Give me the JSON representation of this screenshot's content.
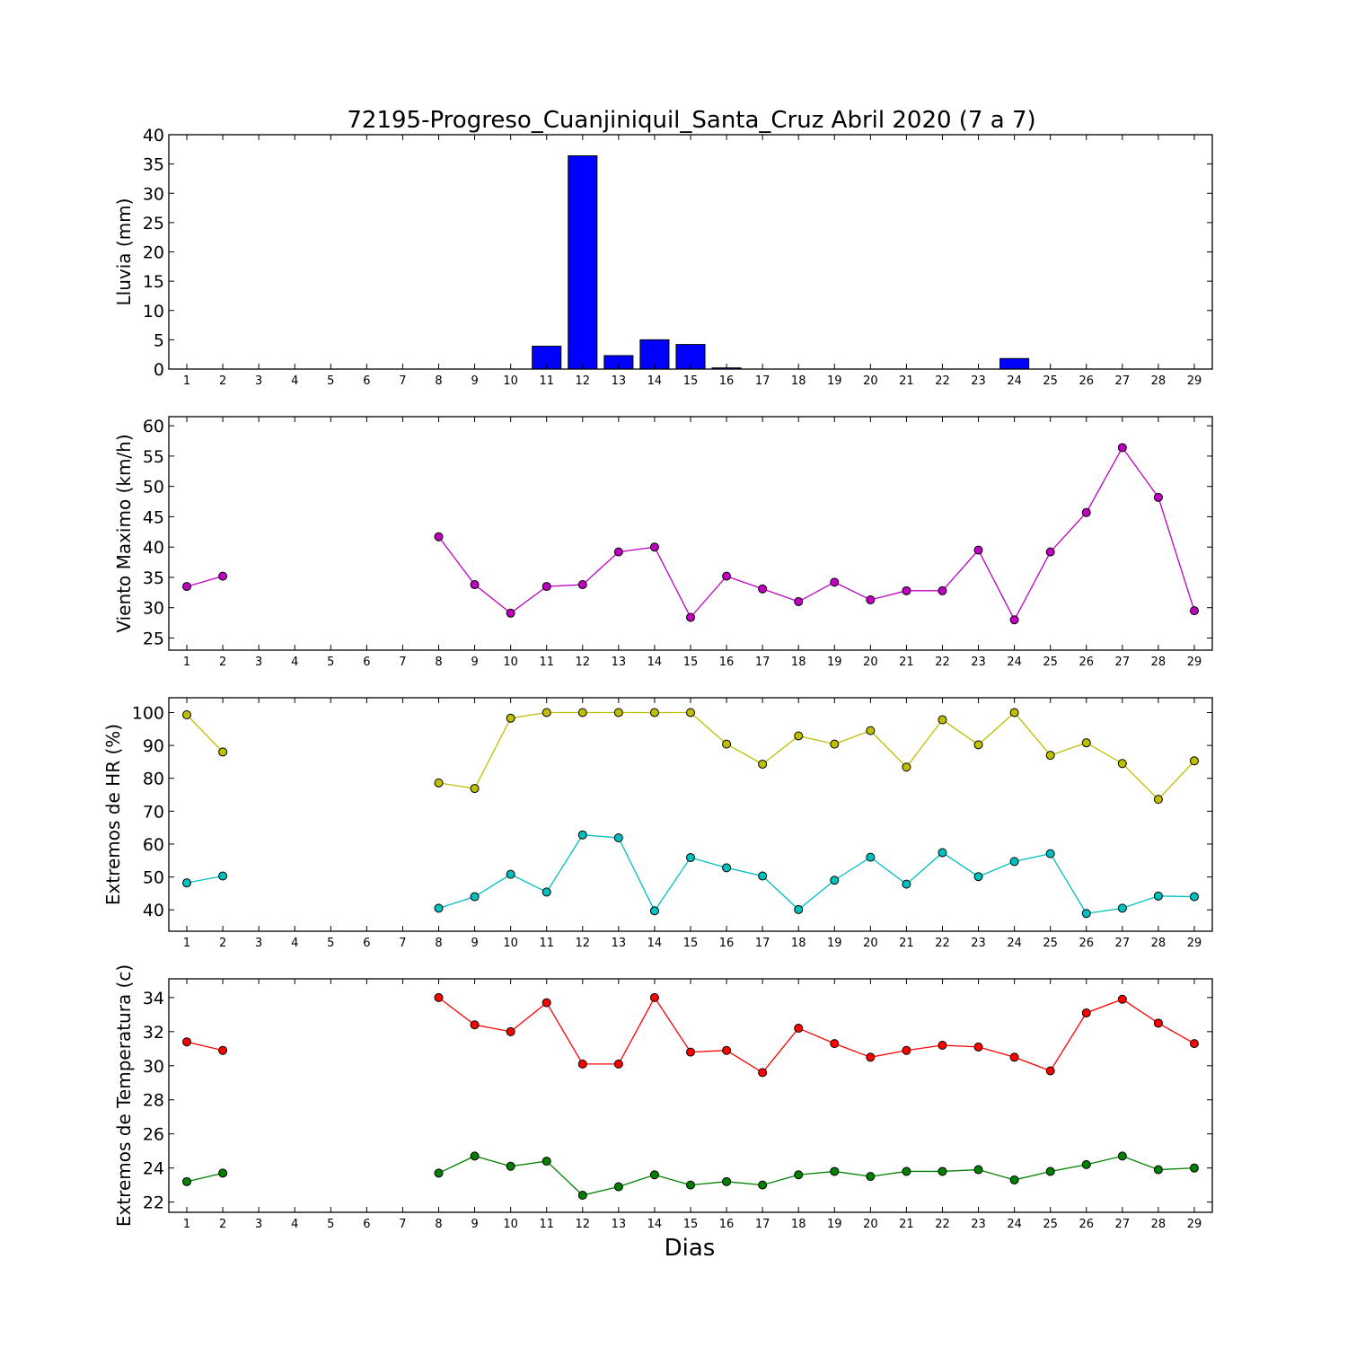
{
  "title": "72195-Progreso_Cuanjiniquil_Santa_Cruz Abril 2020  (7 a 7)",
  "xlabel": "Dias",
  "chart_data": [
    {
      "type": "bar",
      "ylabel": "Lluvia (mm)",
      "ylim": [
        0,
        40
      ],
      "yticks": [
        0,
        5,
        10,
        15,
        20,
        25,
        30,
        35,
        40
      ],
      "x": [
        1,
        2,
        3,
        4,
        5,
        6,
        7,
        8,
        9,
        10,
        11,
        12,
        13,
        14,
        15,
        16,
        17,
        18,
        19,
        20,
        21,
        22,
        23,
        24,
        25,
        26,
        27,
        28,
        29
      ],
      "color": "#0000ff",
      "values": [
        0,
        0,
        0,
        0,
        0,
        0,
        0,
        0,
        0,
        0,
        3.9,
        36.4,
        2.3,
        5.0,
        4.2,
        0.2,
        0,
        0,
        0,
        0,
        0,
        0,
        0,
        1.8,
        0,
        0,
        0,
        0,
        0
      ]
    },
    {
      "type": "line",
      "ylabel": "Viento Maximo (km/h)",
      "ylim": [
        23,
        61.5
      ],
      "yticks": [
        25,
        30,
        35,
        40,
        45,
        50,
        55,
        60
      ],
      "x": [
        1,
        2,
        3,
        4,
        5,
        6,
        7,
        8,
        9,
        10,
        11,
        12,
        13,
        14,
        15,
        16,
        17,
        18,
        19,
        20,
        21,
        22,
        23,
        24,
        25,
        26,
        27,
        28,
        29
      ],
      "series": [
        {
          "color": "#bf00bf",
          "values": [
            33.5,
            35.2,
            null,
            null,
            null,
            null,
            null,
            41.7,
            33.8,
            29.1,
            33.5,
            33.8,
            39.2,
            40.0,
            28.4,
            35.2,
            33.1,
            31.0,
            34.2,
            31.3,
            32.8,
            32.8,
            39.5,
            28.0,
            39.2,
            45.7,
            56.4,
            48.2,
            29.5
          ]
        }
      ]
    },
    {
      "type": "line",
      "ylabel": "Extremos de HR (%)",
      "ylim": [
        33.5,
        104.5
      ],
      "yticks": [
        40,
        50,
        60,
        70,
        80,
        90,
        100
      ],
      "x": [
        1,
        2,
        3,
        4,
        5,
        6,
        7,
        8,
        9,
        10,
        11,
        12,
        13,
        14,
        15,
        16,
        17,
        18,
        19,
        20,
        21,
        22,
        23,
        24,
        25,
        26,
        27,
        28,
        29
      ],
      "series": [
        {
          "color": "#bfbf00",
          "values": [
            99.3,
            88.0,
            null,
            null,
            null,
            null,
            null,
            78.6,
            76.9,
            98.3,
            100,
            100,
            100,
            100,
            100,
            90.4,
            84.3,
            92.9,
            90.4,
            94.5,
            83.4,
            97.8,
            90.2,
            100,
            87.0,
            90.8,
            84.5,
            73.6,
            85.3
          ]
        },
        {
          "color": "#00bfbf",
          "values": [
            48.2,
            50.3,
            null,
            null,
            null,
            null,
            null,
            40.5,
            44.0,
            50.8,
            45.4,
            62.8,
            61.9,
            39.7,
            55.9,
            52.8,
            50.3,
            40.1,
            49.0,
            56.0,
            47.8,
            57.4,
            50.1,
            54.7,
            57.1,
            38.9,
            40.5,
            44.2,
            44.0
          ]
        }
      ]
    },
    {
      "type": "line",
      "ylabel": "Extremos de Temperatura (c)",
      "ylim": [
        21.4,
        35.1
      ],
      "yticks": [
        22,
        24,
        26,
        28,
        30,
        32,
        34
      ],
      "x": [
        1,
        2,
        3,
        4,
        5,
        6,
        7,
        8,
        9,
        10,
        11,
        12,
        13,
        14,
        15,
        16,
        17,
        18,
        19,
        20,
        21,
        22,
        23,
        24,
        25,
        26,
        27,
        28,
        29
      ],
      "series": [
        {
          "color": "#ff0000",
          "values": [
            31.4,
            30.9,
            null,
            null,
            null,
            null,
            null,
            34.0,
            32.4,
            32.0,
            33.7,
            30.1,
            30.1,
            34.0,
            30.8,
            30.9,
            29.6,
            32.2,
            31.3,
            30.5,
            30.9,
            31.2,
            31.1,
            30.5,
            29.7,
            33.1,
            33.9,
            32.5,
            31.3
          ]
        },
        {
          "color": "#007f00",
          "values": [
            23.2,
            23.7,
            null,
            null,
            null,
            null,
            null,
            23.7,
            24.7,
            24.1,
            24.4,
            22.4,
            22.9,
            23.6,
            23.0,
            23.2,
            23.0,
            23.6,
            23.8,
            23.5,
            23.8,
            23.8,
            23.9,
            23.3,
            23.8,
            24.2,
            24.7,
            23.9,
            24.0
          ]
        }
      ]
    }
  ]
}
